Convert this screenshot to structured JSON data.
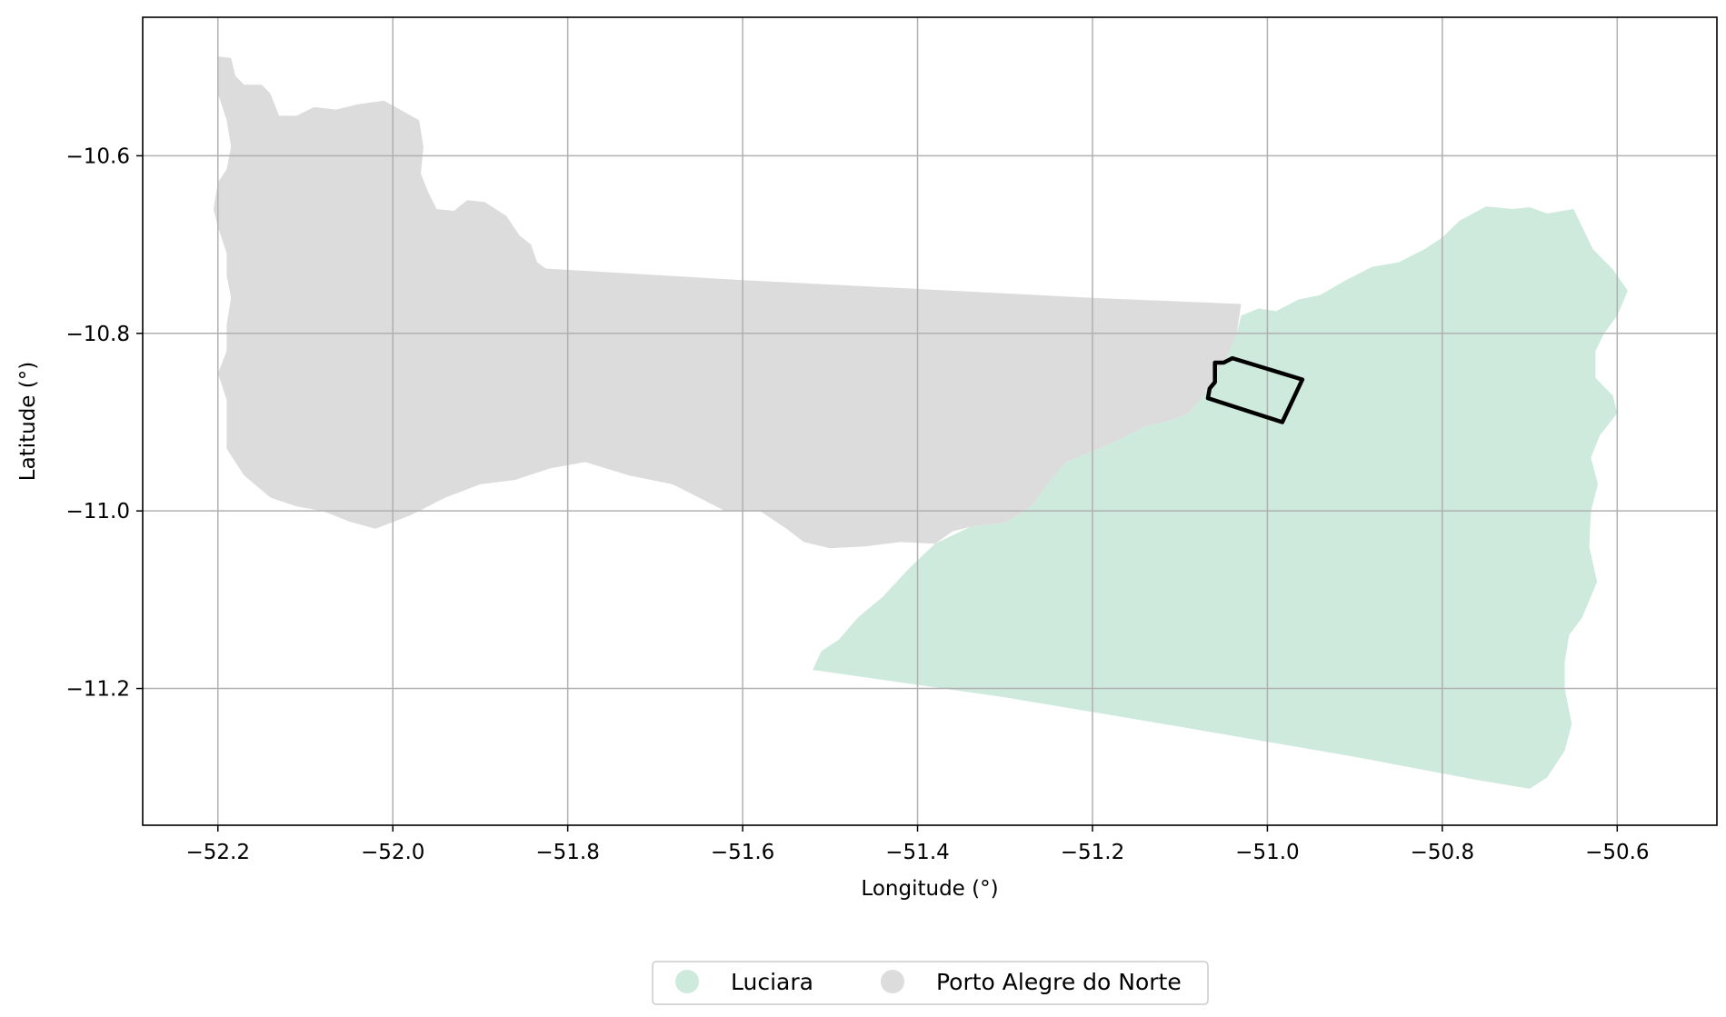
{
  "chart_data": {
    "type": "map",
    "xlabel": "Longitude (°)",
    "ylabel": "Latitude (°)",
    "xlim": [
      -52.286,
      -50.486
    ],
    "ylim": [
      -11.354,
      -10.444
    ],
    "xticks": [
      {
        "value": -52.2,
        "label": "−52.2"
      },
      {
        "value": -52.0,
        "label": "−52.0"
      },
      {
        "value": -51.8,
        "label": "−51.8"
      },
      {
        "value": -51.6,
        "label": "−51.6"
      },
      {
        "value": -51.4,
        "label": "−51.4"
      },
      {
        "value": -51.2,
        "label": "−51.2"
      },
      {
        "value": -51.0,
        "label": "−51.0"
      },
      {
        "value": -50.8,
        "label": "−50.8"
      },
      {
        "value": -50.6,
        "label": "−50.6"
      }
    ],
    "yticks": [
      {
        "value": -10.6,
        "label": "−10.6"
      },
      {
        "value": -10.8,
        "label": "−10.8"
      },
      {
        "value": -11.0,
        "label": "−11.0"
      },
      {
        "value": -11.2,
        "label": "−11.2"
      }
    ],
    "grid": true,
    "legend_placement": "bottom-center",
    "regions": [
      {
        "name": "Luciara",
        "color": "#cdeadd",
        "coords": [
          [
            -51.52,
            -11.179
          ],
          [
            -51.51,
            -11.158
          ],
          [
            -51.49,
            -11.145
          ],
          [
            -51.468,
            -11.12
          ],
          [
            -51.44,
            -11.097
          ],
          [
            -51.41,
            -11.065
          ],
          [
            -51.38,
            -11.037
          ],
          [
            -51.34,
            -11.018
          ],
          [
            -51.3,
            -11.013
          ],
          [
            -51.27,
            -10.995
          ],
          [
            -51.25,
            -10.968
          ],
          [
            -51.23,
            -10.945
          ],
          [
            -51.2,
            -10.933
          ],
          [
            -51.17,
            -10.92
          ],
          [
            -51.14,
            -10.905
          ],
          [
            -51.11,
            -10.898
          ],
          [
            -51.09,
            -10.89
          ],
          [
            -51.073,
            -10.87
          ],
          [
            -51.06,
            -10.848
          ],
          [
            -51.045,
            -10.825
          ],
          [
            -51.035,
            -10.8
          ],
          [
            -51.03,
            -10.78
          ],
          [
            -51.01,
            -10.772
          ],
          [
            -50.99,
            -10.775
          ],
          [
            -50.965,
            -10.762
          ],
          [
            -50.94,
            -10.757
          ],
          [
            -50.91,
            -10.74
          ],
          [
            -50.88,
            -10.725
          ],
          [
            -50.85,
            -10.72
          ],
          [
            -50.82,
            -10.705
          ],
          [
            -50.8,
            -10.692
          ],
          [
            -50.78,
            -10.673
          ],
          [
            -50.75,
            -10.657
          ],
          [
            -50.72,
            -10.66
          ],
          [
            -50.7,
            -10.658
          ],
          [
            -50.68,
            -10.665
          ],
          [
            -50.65,
            -10.66
          ],
          [
            -50.64,
            -10.68
          ],
          [
            -50.628,
            -10.705
          ],
          [
            -50.605,
            -10.728
          ],
          [
            -50.588,
            -10.752
          ],
          [
            -50.6,
            -10.78
          ],
          [
            -50.615,
            -10.8
          ],
          [
            -50.625,
            -10.82
          ],
          [
            -50.625,
            -10.85
          ],
          [
            -50.605,
            -10.87
          ],
          [
            -50.6,
            -10.89
          ],
          [
            -50.62,
            -10.915
          ],
          [
            -50.63,
            -10.94
          ],
          [
            -50.622,
            -10.97
          ],
          [
            -50.63,
            -11.0
          ],
          [
            -50.632,
            -11.04
          ],
          [
            -50.623,
            -11.08
          ],
          [
            -50.64,
            -11.12
          ],
          [
            -50.655,
            -11.14
          ],
          [
            -50.66,
            -11.17
          ],
          [
            -50.66,
            -11.2
          ],
          [
            -50.652,
            -11.24
          ],
          [
            -50.66,
            -11.27
          ],
          [
            -50.68,
            -11.3
          ],
          [
            -50.7,
            -11.313
          ],
          [
            -50.76,
            -11.303
          ],
          [
            -50.9,
            -11.277
          ],
          [
            -51.1,
            -11.243
          ],
          [
            -51.3,
            -11.21
          ],
          [
            -51.52,
            -11.179
          ]
        ]
      },
      {
        "name": "Porto Alegre do Norte",
        "color": "#dcdcdc",
        "coords": [
          [
            -52.2,
            -10.488
          ],
          [
            -52.185,
            -10.49
          ],
          [
            -52.18,
            -10.51
          ],
          [
            -52.17,
            -10.52
          ],
          [
            -52.15,
            -10.52
          ],
          [
            -52.14,
            -10.53
          ],
          [
            -52.13,
            -10.555
          ],
          [
            -52.11,
            -10.555
          ],
          [
            -52.09,
            -10.545
          ],
          [
            -52.065,
            -10.548
          ],
          [
            -52.04,
            -10.542
          ],
          [
            -52.01,
            -10.538
          ],
          [
            -51.97,
            -10.56
          ],
          [
            -51.965,
            -10.59
          ],
          [
            -51.968,
            -10.62
          ],
          [
            -51.96,
            -10.64
          ],
          [
            -51.95,
            -10.66
          ],
          [
            -51.93,
            -10.662
          ],
          [
            -51.915,
            -10.65
          ],
          [
            -51.895,
            -10.652
          ],
          [
            -51.87,
            -10.668
          ],
          [
            -51.855,
            -10.69
          ],
          [
            -51.842,
            -10.7
          ],
          [
            -51.835,
            -10.72
          ],
          [
            -51.825,
            -10.727
          ],
          [
            -51.6,
            -10.74
          ],
          [
            -51.4,
            -10.75
          ],
          [
            -51.2,
            -10.76
          ],
          [
            -51.03,
            -10.767
          ],
          [
            -51.035,
            -10.8
          ],
          [
            -51.045,
            -10.825
          ],
          [
            -51.06,
            -10.848
          ],
          [
            -51.073,
            -10.87
          ],
          [
            -51.09,
            -10.89
          ],
          [
            -51.11,
            -10.898
          ],
          [
            -51.14,
            -10.905
          ],
          [
            -51.17,
            -10.92
          ],
          [
            -51.2,
            -10.933
          ],
          [
            -51.23,
            -10.945
          ],
          [
            -51.25,
            -10.968
          ],
          [
            -51.27,
            -10.995
          ],
          [
            -51.3,
            -11.013
          ],
          [
            -51.34,
            -11.018
          ],
          [
            -51.36,
            -11.023
          ],
          [
            -51.38,
            -11.037
          ],
          [
            -51.42,
            -11.035
          ],
          [
            -51.46,
            -11.04
          ],
          [
            -51.5,
            -11.042
          ],
          [
            -51.53,
            -11.035
          ],
          [
            -51.55,
            -11.02
          ],
          [
            -51.58,
            -11.0
          ],
          [
            -51.62,
            -11.0
          ],
          [
            -51.65,
            -10.985
          ],
          [
            -51.68,
            -10.97
          ],
          [
            -51.73,
            -10.96
          ],
          [
            -51.78,
            -10.945
          ],
          [
            -51.82,
            -10.952
          ],
          [
            -51.86,
            -10.965
          ],
          [
            -51.9,
            -10.97
          ],
          [
            -51.94,
            -10.985
          ],
          [
            -51.98,
            -11.005
          ],
          [
            -52.02,
            -11.02
          ],
          [
            -52.05,
            -11.012
          ],
          [
            -52.08,
            -11.0
          ],
          [
            -52.11,
            -10.995
          ],
          [
            -52.14,
            -10.985
          ],
          [
            -52.17,
            -10.96
          ],
          [
            -52.19,
            -10.93
          ],
          [
            -52.19,
            -10.9
          ],
          [
            -52.19,
            -10.875
          ],
          [
            -52.2,
            -10.845
          ],
          [
            -52.19,
            -10.82
          ],
          [
            -52.19,
            -10.79
          ],
          [
            -52.185,
            -10.76
          ],
          [
            -52.19,
            -10.735
          ],
          [
            -52.19,
            -10.71
          ],
          [
            -52.2,
            -10.68
          ],
          [
            -52.205,
            -10.66
          ],
          [
            -52.2,
            -10.63
          ],
          [
            -52.19,
            -10.615
          ],
          [
            -52.185,
            -10.59
          ],
          [
            -52.19,
            -10.56
          ],
          [
            -52.2,
            -10.53
          ],
          [
            -52.2,
            -10.488
          ]
        ]
      }
    ],
    "outline": {
      "coords": [
        [
          -51.04,
          -10.828
        ],
        [
          -50.96,
          -10.852
        ],
        [
          -50.983,
          -10.9
        ],
        [
          -51.068,
          -10.873
        ],
        [
          -51.066,
          -10.862
        ],
        [
          -51.06,
          -10.855
        ],
        [
          -51.06,
          -10.843
        ],
        [
          -51.06,
          -10.833
        ],
        [
          -51.05,
          -10.833
        ],
        [
          -51.04,
          -10.828
        ]
      ]
    },
    "legend": [
      {
        "label": "Luciara",
        "color": "#cdeadd"
      },
      {
        "label": "Porto Alegre do Norte",
        "color": "#dcdcdc"
      }
    ]
  }
}
